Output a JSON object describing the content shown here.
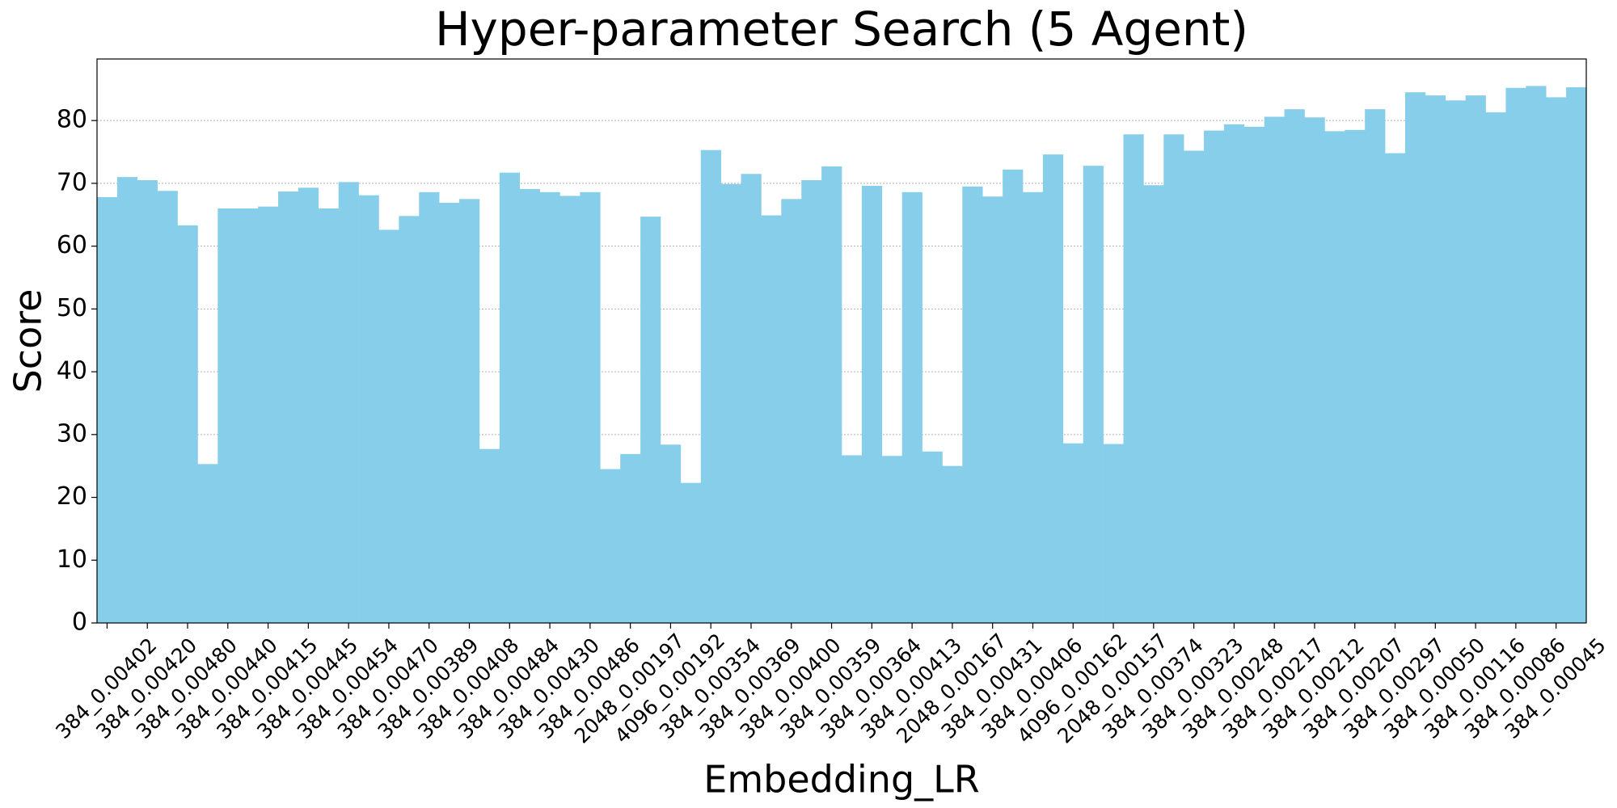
{
  "chart_data": {
    "type": "bar",
    "title": "Hyper-parameter Search (5 Agent)",
    "x_label": "Embedding_LR",
    "y_label": "Score",
    "color": "#87ceeb",
    "grid": true,
    "ylim": [
      0,
      89.8
    ],
    "yticks": [
      0,
      10,
      20,
      30,
      40,
      50,
      60,
      70,
      80
    ],
    "categories": [
      "384_0.00402",
      null,
      "384_0.00420",
      null,
      "384_0.00480",
      null,
      "384_0.00440",
      null,
      "384_0.00415",
      null,
      "384_0.00445",
      null,
      "384_0.00454",
      null,
      "384_0.00470",
      null,
      "384_0.00389",
      null,
      "384_0.00408",
      null,
      "384_0.00484",
      null,
      "384_0.00430",
      null,
      "384_0.00486",
      null,
      "2048_0.00197",
      null,
      "4096_0.00192",
      null,
      "384_0.00354",
      null,
      "384_0.00369",
      null,
      "384_0.00400",
      null,
      "384_0.00359",
      null,
      "384_0.00364",
      null,
      "384_0.00413",
      null,
      "2048_0.00167",
      null,
      "384_0.00431",
      null,
      "384_0.00406",
      null,
      "4096_0.00162",
      null,
      "2048_0.00157",
      null,
      "384_0.00374",
      null,
      "384_0.00323",
      null,
      "384_0.00248",
      null,
      "384_0.00217",
      null,
      "384_0.00212",
      null,
      "384_0.00207",
      null,
      "384_0.00297",
      null,
      "384_0.00050",
      null,
      "384_0.00116",
      null,
      "384_0.00086",
      null,
      "384_0.00045",
      null
    ],
    "values": [
      67.8,
      71,
      70.5,
      68.8,
      63.3,
      25.3,
      66,
      66,
      66.3,
      68.7,
      69.3,
      66,
      70.2,
      68.1,
      62.6,
      64.8,
      68.6,
      66.9,
      67.5,
      27.7,
      71.7,
      69.1,
      68.6,
      68,
      68.6,
      24.5,
      26.9,
      64.7,
      28.4,
      22.3,
      75.3,
      69.9,
      71.5,
      64.9,
      67.5,
      70.5,
      72.7,
      26.7,
      69.6,
      26.6,
      68.6,
      27.3,
      25,
      69.5,
      67.9,
      72.2,
      68.6,
      74.6,
      28.6,
      72.8,
      28.5,
      77.8,
      69.7,
      77.8,
      75.2,
      78.4,
      79.4,
      79,
      80.6,
      81.8,
      80.5,
      78.3,
      78.5,
      81.8,
      74.8,
      84.5,
      84,
      83.2,
      84,
      81.3,
      85.2,
      85.5,
      83.7,
      85.3
    ]
  }
}
